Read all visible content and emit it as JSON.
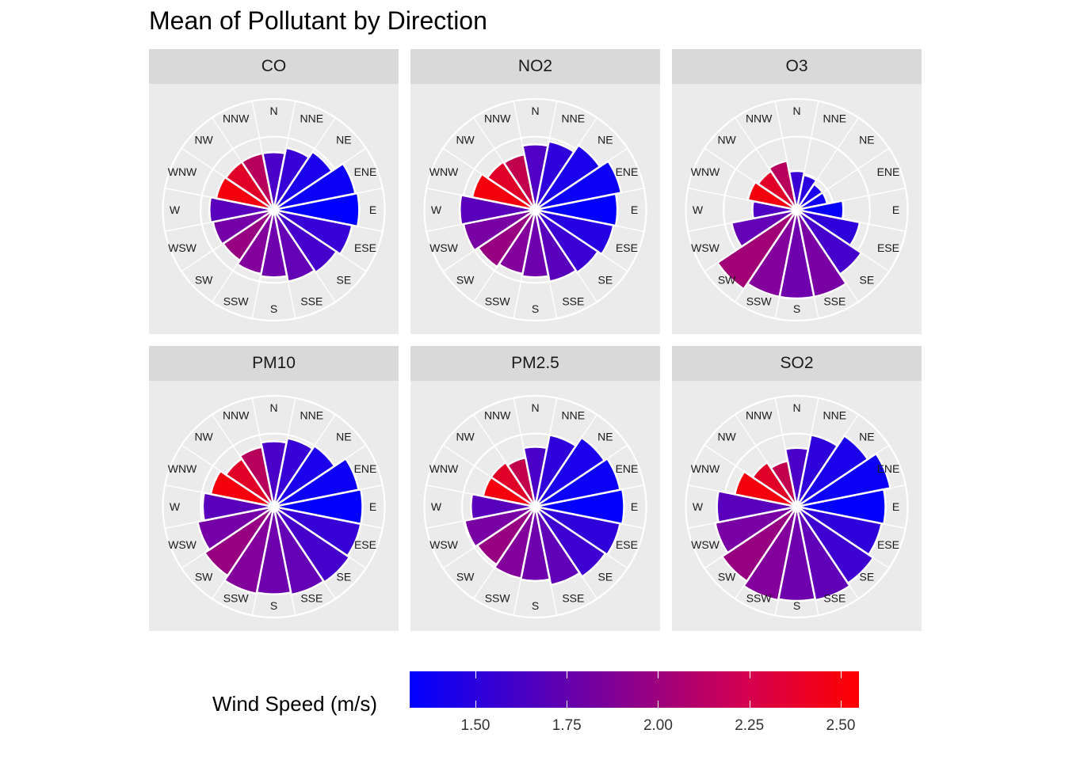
{
  "title": "Mean of Pollutant by Direction",
  "legend": {
    "title": "Wind Speed (m/s)",
    "min": 1.32,
    "max": 2.55,
    "ticks": [
      "1.50",
      "1.75",
      "2.00",
      "2.25",
      "2.50"
    ],
    "colors": {
      "low": "#0000ff",
      "mid": "#8000a0",
      "high": "#ff0000"
    }
  },
  "chart_data": {
    "type": "polar-bar",
    "directions": [
      "N",
      "NNE",
      "NE",
      "ENE",
      "E",
      "ESE",
      "SE",
      "SSE",
      "S",
      "SSW",
      "SW",
      "WSW",
      "W",
      "WNW",
      "NW",
      "NNW"
    ],
    "r_max": 1.0,
    "gridlines": [
      0.33,
      0.66,
      1.0
    ],
    "panels": [
      {
        "name": "CO",
        "values": [
          0.52,
          0.57,
          0.63,
          0.75,
          0.77,
          0.72,
          0.68,
          0.66,
          0.61,
          0.59,
          0.55,
          0.56,
          0.58,
          0.53,
          0.52,
          0.52
        ],
        "wind_speed": [
          1.68,
          1.58,
          1.45,
          1.38,
          1.32,
          1.58,
          1.65,
          1.8,
          1.85,
          1.95,
          2.05,
          1.88,
          1.75,
          2.5,
          2.4,
          2.2
        ]
      },
      {
        "name": "NO2",
        "values": [
          0.59,
          0.63,
          0.7,
          0.79,
          0.74,
          0.72,
          0.68,
          0.66,
          0.61,
          0.59,
          0.62,
          0.66,
          0.68,
          0.58,
          0.52,
          0.51
        ],
        "wind_speed": [
          1.7,
          1.55,
          1.45,
          1.38,
          1.33,
          1.5,
          1.6,
          1.75,
          1.85,
          1.95,
          2.05,
          1.9,
          1.75,
          2.5,
          2.4,
          2.25
        ]
      },
      {
        "name": "O3",
        "values": [
          0.35,
          0.32,
          0.28,
          0.28,
          0.42,
          0.58,
          0.7,
          0.8,
          0.8,
          0.8,
          0.86,
          0.6,
          0.4,
          0.45,
          0.42,
          0.45
        ],
        "wind_speed": [
          1.6,
          1.52,
          1.45,
          1.4,
          1.35,
          1.55,
          1.65,
          1.9,
          1.85,
          1.95,
          2.1,
          1.8,
          1.7,
          2.5,
          2.4,
          2.2
        ]
      },
      {
        "name": "PM10",
        "values": [
          0.59,
          0.63,
          0.66,
          0.78,
          0.8,
          0.8,
          0.82,
          0.81,
          0.79,
          0.8,
          0.75,
          0.7,
          0.64,
          0.58,
          0.52,
          0.55
        ],
        "wind_speed": [
          1.68,
          1.58,
          1.45,
          1.38,
          1.33,
          1.58,
          1.65,
          1.8,
          1.85,
          1.95,
          2.05,
          1.88,
          1.75,
          2.5,
          2.4,
          2.2
        ]
      },
      {
        "name": "PM2.5",
        "values": [
          0.54,
          0.66,
          0.75,
          0.78,
          0.8,
          0.78,
          0.76,
          0.72,
          0.67,
          0.66,
          0.63,
          0.65,
          0.58,
          0.48,
          0.48,
          0.45
        ],
        "wind_speed": [
          1.68,
          1.55,
          1.45,
          1.38,
          1.33,
          1.55,
          1.62,
          1.78,
          1.85,
          1.95,
          2.05,
          1.9,
          1.75,
          2.5,
          2.4,
          2.25
        ]
      },
      {
        "name": "SO2",
        "values": [
          0.53,
          0.66,
          0.77,
          0.86,
          0.8,
          0.78,
          0.83,
          0.86,
          0.85,
          0.86,
          0.81,
          0.75,
          0.72,
          0.57,
          0.48,
          0.42
        ],
        "wind_speed": [
          1.68,
          1.55,
          1.45,
          1.38,
          1.33,
          1.55,
          1.62,
          1.78,
          1.85,
          1.95,
          2.05,
          1.9,
          1.75,
          2.5,
          2.4,
          2.25
        ]
      }
    ]
  }
}
